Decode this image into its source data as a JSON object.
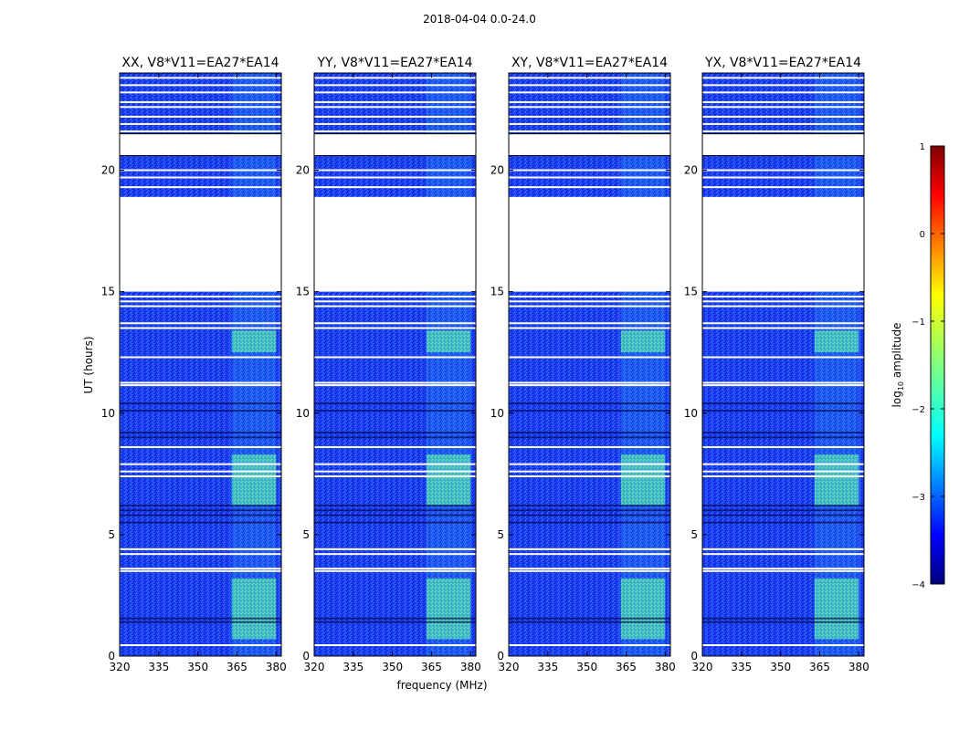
{
  "figure": {
    "suptitle": "2018-04-04 0.0-24.0"
  },
  "chart_data": {
    "type": "heatmap",
    "xlabel": "frequency (MHz)",
    "ylabel": "UT (hours)",
    "xlim": [
      320,
      382
    ],
    "ylim": [
      0,
      24
    ],
    "xticks": [
      320,
      335,
      350,
      365,
      380
    ],
    "yticks": [
      0,
      5,
      10,
      15,
      20
    ],
    "panels": [
      {
        "title": "XX, V8*V11=EA27*EA14",
        "polarization": "XX"
      },
      {
        "title": "YY, V8*V11=EA27*EA14",
        "polarization": "YY"
      },
      {
        "title": "XY, V8*V11=EA27*EA14",
        "polarization": "XY"
      },
      {
        "title": "YX, V8*V11=EA27*EA14",
        "polarization": "YX"
      }
    ],
    "data_gaps_hours": [
      [
        15.0,
        18.9
      ],
      [
        20.6,
        21.5
      ]
    ],
    "bright_band_mhz": [
      363,
      380
    ],
    "bright_intervals_hours": [
      [
        0.7,
        3.2
      ],
      [
        6.2,
        8.3
      ],
      [
        12.5,
        13.4
      ]
    ],
    "colorbar": {
      "label": "log10 amplitude",
      "label_main": "log",
      "label_sub": "10",
      "label_rest": " amplitude",
      "range": [
        -4,
        1
      ],
      "ticks": [
        1,
        0,
        -1,
        -2,
        -3,
        -4
      ],
      "colormap": "jet"
    }
  }
}
